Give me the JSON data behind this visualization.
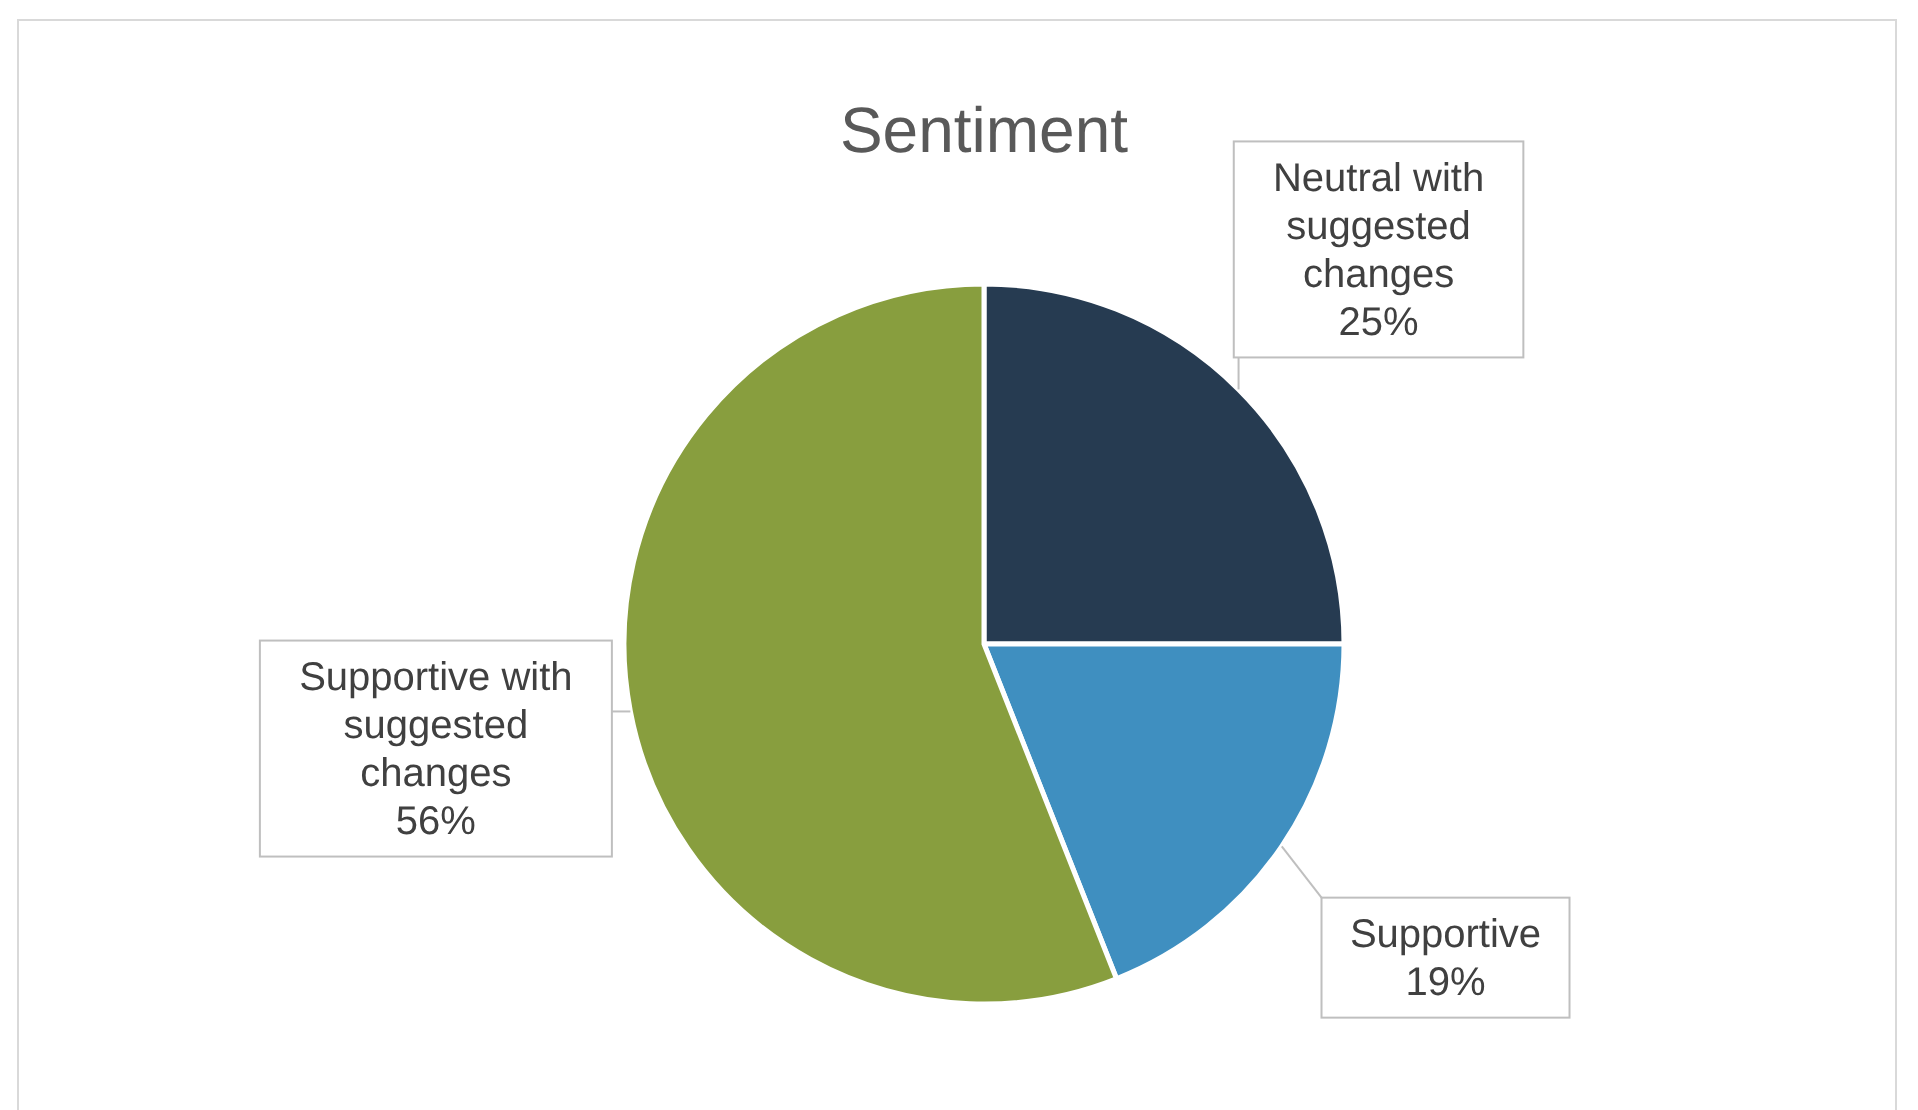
{
  "chart_data": {
    "type": "pie",
    "title": "Sentiment",
    "categories": [
      "Neutral with suggested changes",
      "Supportive",
      "Supportive with suggested changes"
    ],
    "values": [
      25,
      19,
      56
    ],
    "value_labels": [
      "25%",
      "19%",
      "56%"
    ],
    "colors": [
      "#263b51",
      "#3f8fc0",
      "#889e3e"
    ]
  }
}
